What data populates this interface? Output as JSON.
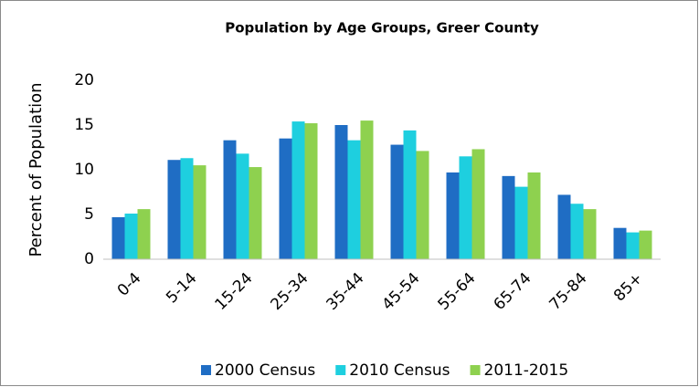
{
  "chart_data": {
    "type": "bar",
    "title": "Population by Age Groups, Greer County",
    "y_label": "Percent of Population",
    "categories": [
      "0-4",
      "5-14",
      "15-24",
      "25-34",
      "35-44",
      "45-54",
      "55-64",
      "65-74",
      "75-84",
      "85+"
    ],
    "series": [
      {
        "name": "2000 Census",
        "color": "#1f6dc4",
        "values": [
          4.7,
          11.1,
          13.3,
          13.5,
          15.0,
          12.8,
          9.7,
          9.3,
          7.2,
          3.5
        ]
      },
      {
        "name": "2010 Census",
        "color": "#1ecfdf",
        "values": [
          5.1,
          11.3,
          11.8,
          15.4,
          13.3,
          14.4,
          11.5,
          8.1,
          6.2,
          3.0
        ]
      },
      {
        "name": "2011-2015",
        "color": "#8ed14f",
        "values": [
          5.6,
          10.5,
          10.3,
          15.2,
          15.5,
          12.1,
          12.3,
          9.7,
          5.6,
          3.2
        ]
      }
    ],
    "ylim": [
      0,
      20
    ],
    "yticks": [
      0,
      5,
      10,
      15,
      20
    ],
    "grid": false,
    "legend": "bottom"
  }
}
